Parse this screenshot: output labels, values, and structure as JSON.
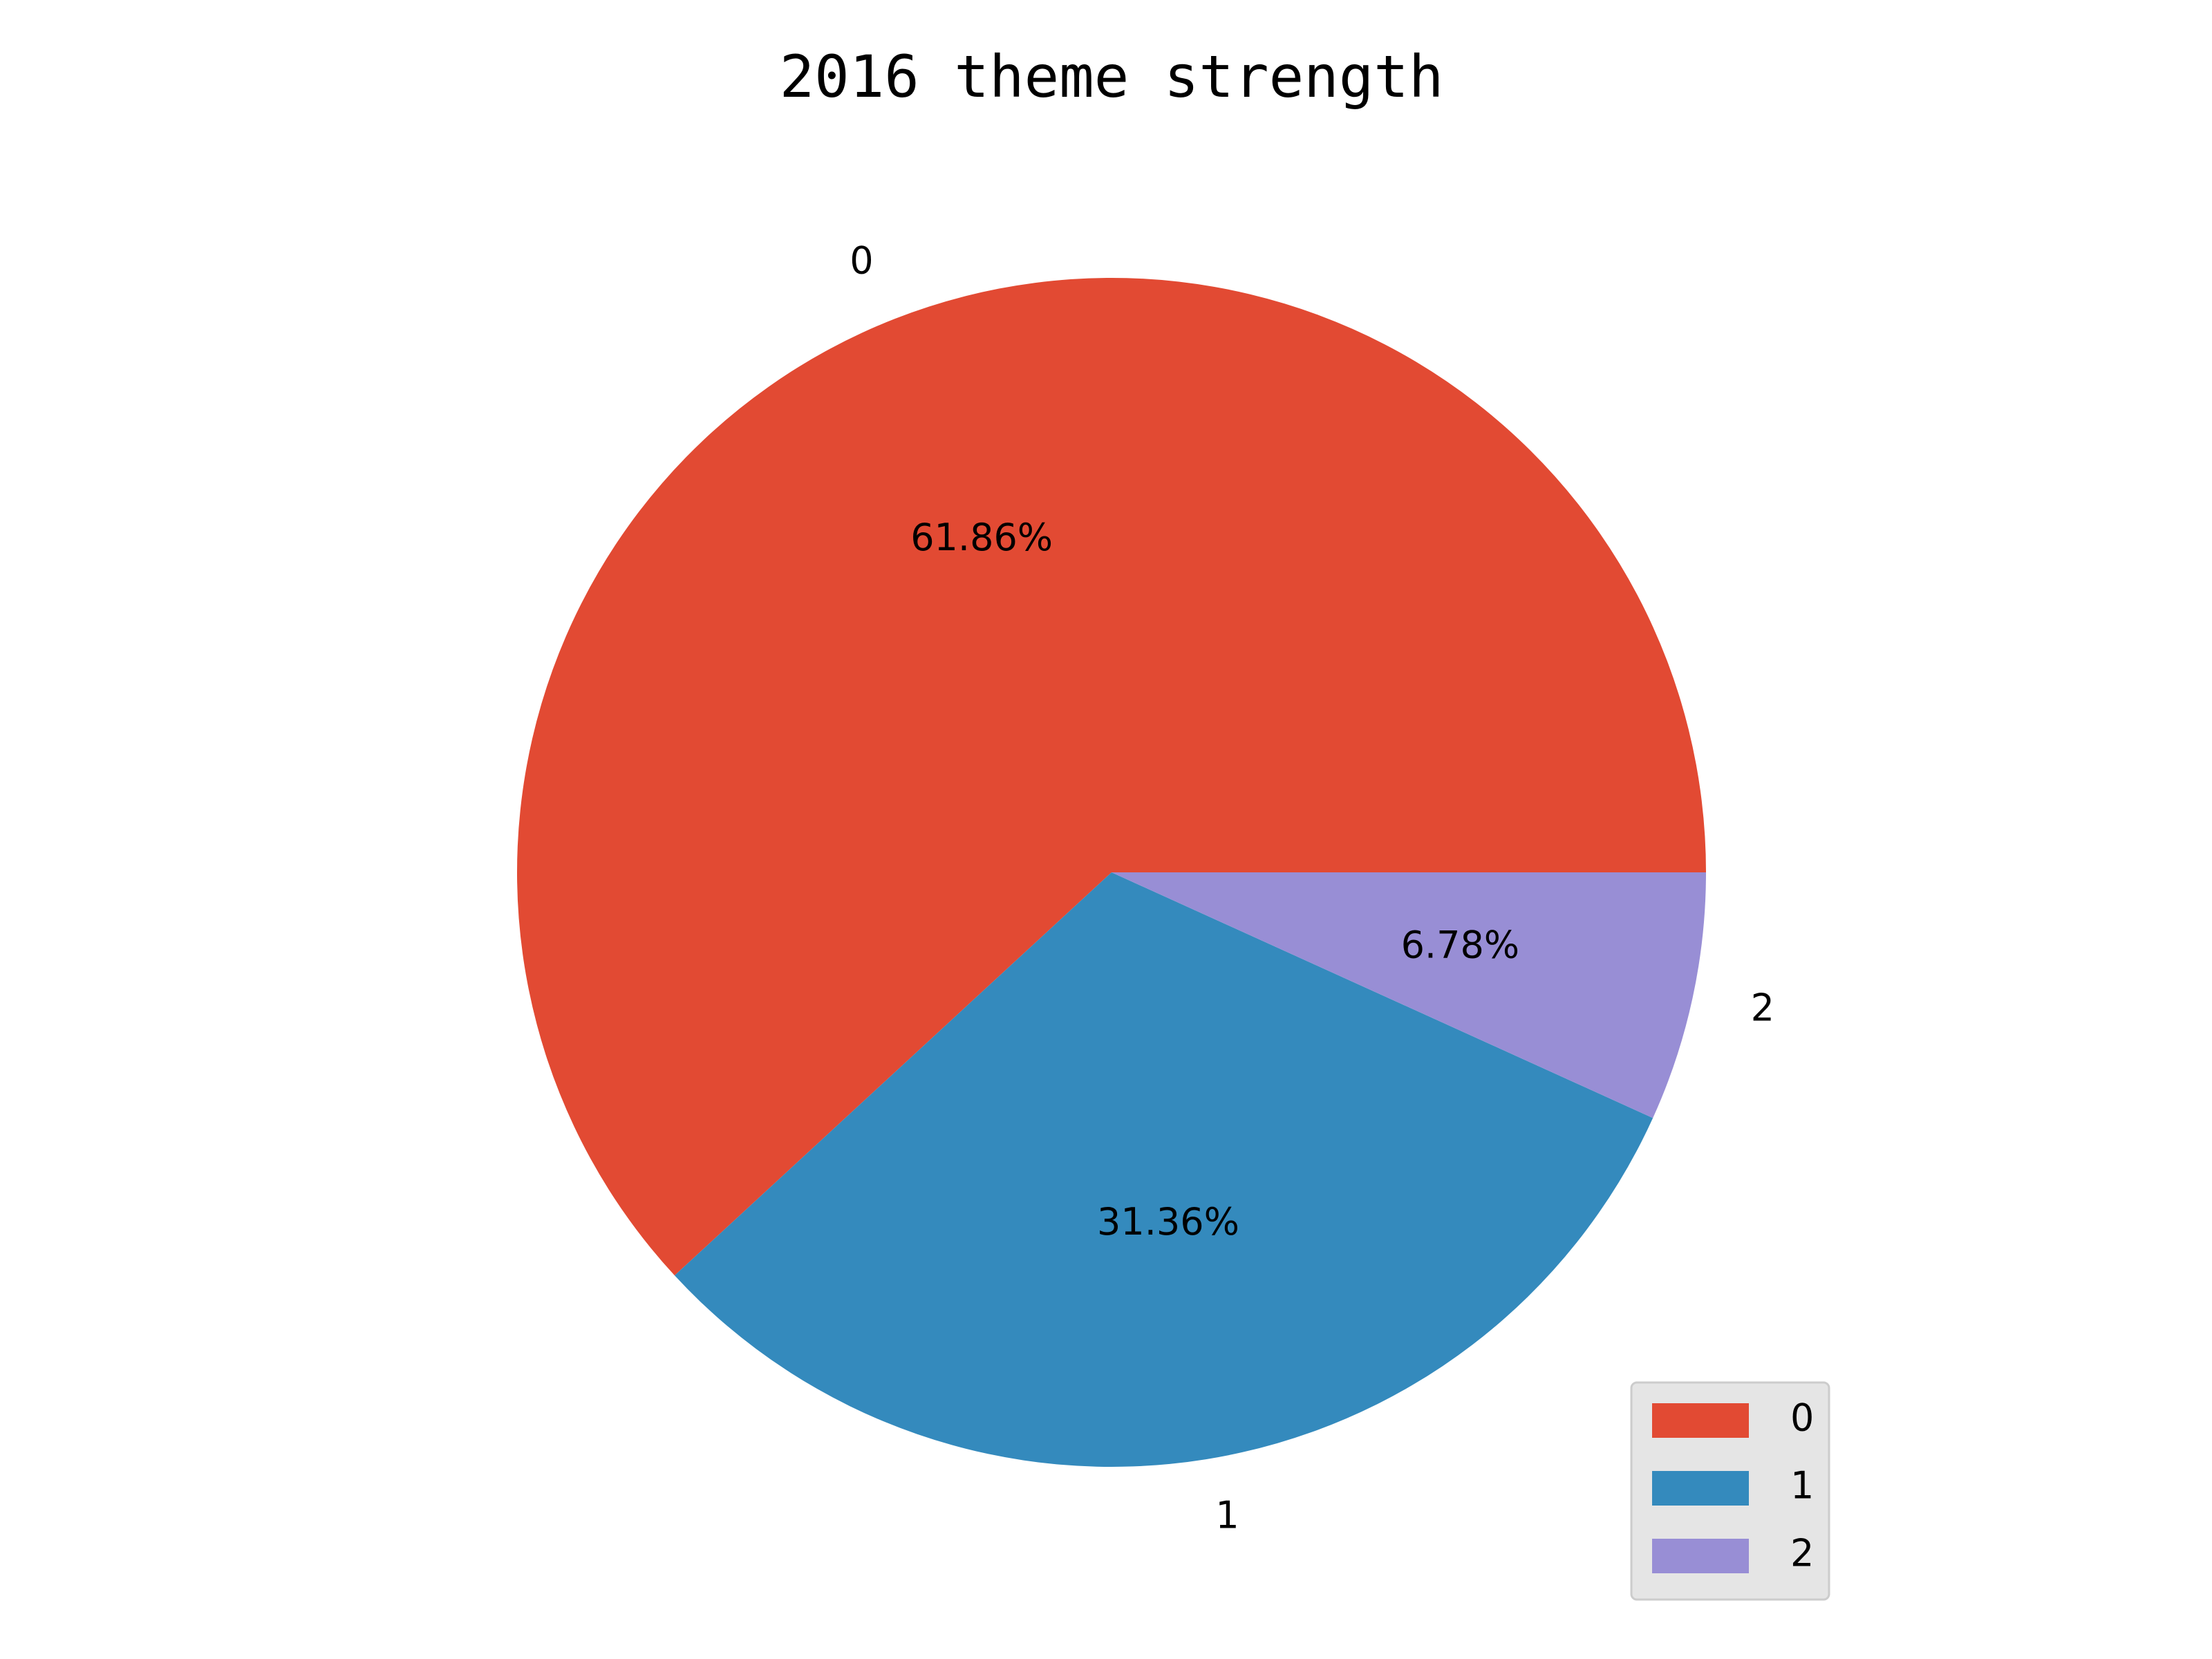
{
  "chart_data": {
    "type": "pie",
    "title": "2016 theme strength",
    "categories": [
      "0",
      "1",
      "2"
    ],
    "values": [
      61.86,
      31.36,
      6.78
    ],
    "value_labels": [
      "61.86%",
      "31.36%",
      "6.78%"
    ],
    "colors": [
      "#E24A33",
      "#348ABD",
      "#988ED5"
    ],
    "start_angle_deg": 0,
    "direction": "counterclockwise",
    "legend": {
      "position": "lower-right",
      "entries": [
        "0",
        "1",
        "2"
      ]
    }
  }
}
